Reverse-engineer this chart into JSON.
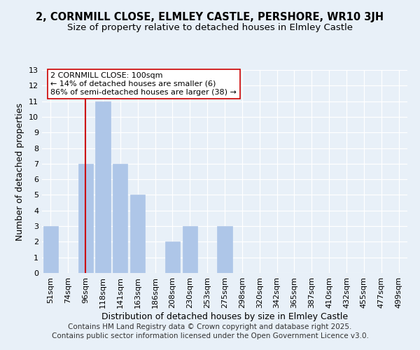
{
  "title": "2, CORNMILL CLOSE, ELMLEY CASTLE, PERSHORE, WR10 3JH",
  "subtitle": "Size of property relative to detached houses in Elmley Castle",
  "xlabel": "Distribution of detached houses by size in Elmley Castle",
  "ylabel": "Number of detached properties",
  "bar_labels": [
    "51sqm",
    "74sqm",
    "96sqm",
    "118sqm",
    "141sqm",
    "163sqm",
    "186sqm",
    "208sqm",
    "230sqm",
    "253sqm",
    "275sqm",
    "298sqm",
    "320sqm",
    "342sqm",
    "365sqm",
    "387sqm",
    "410sqm",
    "432sqm",
    "455sqm",
    "477sqm",
    "499sqm"
  ],
  "bar_values": [
    3,
    0,
    7,
    11,
    7,
    5,
    0,
    2,
    3,
    0,
    3,
    0,
    0,
    0,
    0,
    0,
    0,
    0,
    0,
    0,
    0
  ],
  "bar_color": "#aec6e8",
  "bar_edge_color": "#aec6e8",
  "ylim": [
    0,
    13
  ],
  "yticks": [
    0,
    1,
    2,
    3,
    4,
    5,
    6,
    7,
    8,
    9,
    10,
    11,
    12,
    13
  ],
  "vline_x": 2,
  "vline_color": "#cc0000",
  "annotation_title": "2 CORNMILL CLOSE: 100sqm",
  "annotation_line1": "← 14% of detached houses are smaller (6)",
  "annotation_line2": "86% of semi-detached houses are larger (38) →",
  "annotation_box_color": "#ffffff",
  "annotation_box_edge": "#cc0000",
  "footer1": "Contains HM Land Registry data © Crown copyright and database right 2025.",
  "footer2": "Contains public sector information licensed under the Open Government Licence v3.0.",
  "bg_color": "#e8f0f8",
  "plot_bg_color": "#e8f0f8",
  "title_fontsize": 10.5,
  "subtitle_fontsize": 9.5,
  "axis_label_fontsize": 9,
  "tick_fontsize": 8,
  "annotation_fontsize": 8,
  "footer_fontsize": 7.5
}
